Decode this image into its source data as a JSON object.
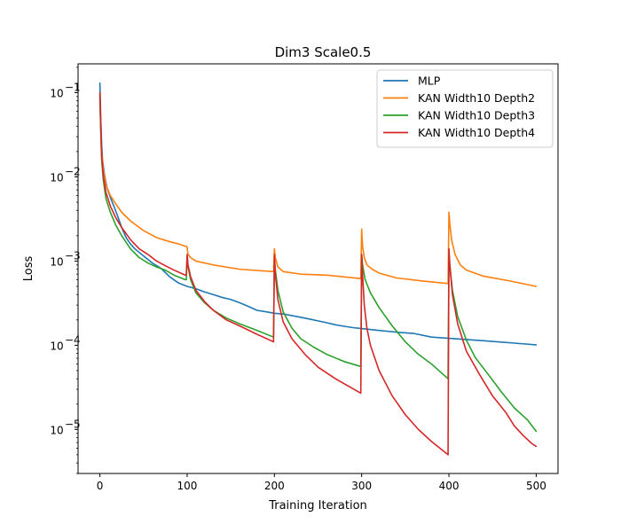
{
  "chart_data": {
    "type": "line",
    "title": "Dim3 Scale0.5",
    "xlabel": "Training Iteration",
    "ylabel": "Loss",
    "yscale": "log",
    "xlim": [
      -25,
      525
    ],
    "ylim": [
      3e-06,
      0.22
    ],
    "xticks": [
      0,
      100,
      200,
      300,
      400,
      500
    ],
    "xtick_labels": [
      "0",
      "100",
      "200",
      "300",
      "400",
      "500"
    ],
    "yticks": [
      1e-05,
      0.0001,
      0.001,
      0.01,
      0.1
    ],
    "ytick_labels": [
      [
        "10",
        "−5"
      ],
      [
        "10",
        "−4"
      ],
      [
        "10",
        "−3"
      ],
      [
        "10",
        "−2"
      ],
      [
        "10",
        "−1"
      ]
    ],
    "legend_position": "top-right",
    "series": [
      {
        "name": "MLP",
        "color": "#1f77b4",
        "points": [
          [
            0,
            0.13
          ],
          [
            1,
            0.05
          ],
          [
            2,
            0.025
          ],
          [
            3,
            0.016
          ],
          [
            5,
            0.011
          ],
          [
            8,
            0.0075
          ],
          [
            12,
            0.0057
          ],
          [
            16,
            0.0045
          ],
          [
            20,
            0.0035
          ],
          [
            25,
            0.0025
          ],
          [
            30,
            0.0019
          ],
          [
            35,
            0.0016
          ],
          [
            40,
            0.0014
          ],
          [
            50,
            0.00115
          ],
          [
            60,
            0.00095
          ],
          [
            70,
            0.00082
          ],
          [
            80,
            0.00065
          ],
          [
            90,
            0.00055
          ],
          [
            100,
            0.0005
          ],
          [
            110,
            0.00047
          ],
          [
            120,
            0.00043
          ],
          [
            130,
            0.0004
          ],
          [
            140,
            0.00037
          ],
          [
            150,
            0.00035
          ],
          [
            160,
            0.00032
          ],
          [
            170,
            0.00029
          ],
          [
            180,
            0.00026
          ],
          [
            190,
            0.00025
          ],
          [
            200,
            0.00024
          ],
          [
            210,
            0.000235
          ],
          [
            220,
            0.000225
          ],
          [
            230,
            0.000215
          ],
          [
            240,
            0.000205
          ],
          [
            250,
            0.000195
          ],
          [
            260,
            0.000185
          ],
          [
            270,
            0.000175
          ],
          [
            280,
            0.000168
          ],
          [
            290,
            0.000162
          ],
          [
            300,
            0.000158
          ],
          [
            320,
            0.00015
          ],
          [
            340,
            0.000143
          ],
          [
            360,
            0.000138
          ],
          [
            380,
            0.000125
          ],
          [
            400,
            0.000121
          ],
          [
            420,
            0.000117
          ],
          [
            440,
            0.000113
          ],
          [
            460,
            0.000109
          ],
          [
            480,
            0.000105
          ],
          [
            500,
            0.000101
          ]
        ]
      },
      {
        "name": "KAN Width10 Depth2",
        "color": "#ff7f0e",
        "points": [
          [
            0,
            0.08
          ],
          [
            1,
            0.04
          ],
          [
            2,
            0.02
          ],
          [
            4,
            0.012
          ],
          [
            7,
            0.008
          ],
          [
            12,
            0.006
          ],
          [
            18,
            0.0048
          ],
          [
            25,
            0.0038
          ],
          [
            35,
            0.003
          ],
          [
            50,
            0.0023
          ],
          [
            65,
            0.0019
          ],
          [
            80,
            0.0017
          ],
          [
            90,
            0.0016
          ],
          [
            98,
            0.0015
          ],
          [
            99,
            0.0015
          ],
          [
            100,
            0.00145
          ],
          [
            101,
            0.0012
          ],
          [
            104,
            0.0011
          ],
          [
            110,
            0.001
          ],
          [
            130,
            0.0009
          ],
          [
            160,
            0.0008
          ],
          [
            199,
            0.00075
          ],
          [
            200,
            0.0014
          ],
          [
            201,
            0.0011
          ],
          [
            204,
            0.00085
          ],
          [
            210,
            0.00075
          ],
          [
            230,
            0.0007
          ],
          [
            260,
            0.00068
          ],
          [
            299,
            0.00062
          ],
          [
            300,
            0.0024
          ],
          [
            301,
            0.0015
          ],
          [
            303,
            0.0011
          ],
          [
            306,
            0.0009
          ],
          [
            312,
            0.0008
          ],
          [
            320,
            0.00072
          ],
          [
            340,
            0.00063
          ],
          [
            370,
            0.00058
          ],
          [
            399,
            0.00054
          ],
          [
            400,
            0.0038
          ],
          [
            401,
            0.0028
          ],
          [
            403,
            0.0018
          ],
          [
            407,
            0.0012
          ],
          [
            413,
            0.0009
          ],
          [
            420,
            0.00078
          ],
          [
            440,
            0.00066
          ],
          [
            470,
            0.00058
          ],
          [
            500,
            0.0005
          ]
        ]
      },
      {
        "name": "KAN Width10 Depth3",
        "color": "#2ca02c",
        "points": [
          [
            0,
            0.09
          ],
          [
            1,
            0.035
          ],
          [
            2,
            0.016
          ],
          [
            4,
            0.009
          ],
          [
            7,
            0.0055
          ],
          [
            12,
            0.0038
          ],
          [
            18,
            0.0027
          ],
          [
            25,
            0.002
          ],
          [
            35,
            0.0014
          ],
          [
            45,
            0.0011
          ],
          [
            55,
            0.00095
          ],
          [
            65,
            0.00085
          ],
          [
            75,
            0.00078
          ],
          [
            85,
            0.00068
          ],
          [
            98,
            0.0006
          ],
          [
            99,
            0.0006
          ],
          [
            100,
            0.0011
          ],
          [
            101,
            0.00085
          ],
          [
            104,
            0.0006
          ],
          [
            110,
            0.00042
          ],
          [
            120,
            0.00032
          ],
          [
            130,
            0.00026
          ],
          [
            145,
            0.00021
          ],
          [
            160,
            0.00018
          ],
          [
            180,
            0.00015
          ],
          [
            199,
            0.000125
          ],
          [
            200,
            0.0011
          ],
          [
            201,
            0.0008
          ],
          [
            204,
            0.00045
          ],
          [
            210,
            0.00025
          ],
          [
            220,
            0.00016
          ],
          [
            230,
            0.00012
          ],
          [
            245,
            9.5e-05
          ],
          [
            260,
            7.8e-05
          ],
          [
            280,
            6.4e-05
          ],
          [
            299,
            5.6e-05
          ],
          [
            300,
            0.0012
          ],
          [
            301,
            0.0009
          ],
          [
            304,
            0.0006
          ],
          [
            310,
            0.00042
          ],
          [
            320,
            0.00028
          ],
          [
            335,
            0.00017
          ],
          [
            350,
            0.00011
          ],
          [
            365,
            7.8e-05
          ],
          [
            380,
            6e-05
          ],
          [
            399,
            4e-05
          ],
          [
            400,
            0.0013
          ],
          [
            401,
            0.0009
          ],
          [
            404,
            0.00045
          ],
          [
            410,
            0.00022
          ],
          [
            420,
            0.000115
          ],
          [
            430,
            7.2e-05
          ],
          [
            445,
            4.5e-05
          ],
          [
            460,
            2.8e-05
          ],
          [
            475,
            1.8e-05
          ],
          [
            490,
            1.3e-05
          ],
          [
            500,
            9.5e-06
          ]
        ]
      },
      {
        "name": "KAN Width10 Depth4",
        "color": "#d62728",
        "points": [
          [
            0,
            0.1
          ],
          [
            1,
            0.04
          ],
          [
            2,
            0.018
          ],
          [
            4,
            0.01
          ],
          [
            7,
            0.0065
          ],
          [
            12,
            0.0045
          ],
          [
            18,
            0.0033
          ],
          [
            25,
            0.0025
          ],
          [
            35,
            0.0018
          ],
          [
            45,
            0.0014
          ],
          [
            55,
            0.0012
          ],
          [
            65,
            0.001
          ],
          [
            75,
            0.00088
          ],
          [
            85,
            0.00078
          ],
          [
            98,
            0.00068
          ],
          [
            99,
            0.00068
          ],
          [
            100,
            0.0012
          ],
          [
            101,
            0.0009
          ],
          [
            104,
            0.00065
          ],
          [
            110,
            0.00045
          ],
          [
            120,
            0.00033
          ],
          [
            130,
            0.00026
          ],
          [
            145,
            0.0002
          ],
          [
            160,
            0.00017
          ],
          [
            180,
            0.000135
          ],
          [
            199,
            0.00011
          ],
          [
            200,
            0.0012
          ],
          [
            201,
            0.0007
          ],
          [
            204,
            0.00035
          ],
          [
            210,
            0.00019
          ],
          [
            220,
            0.00012
          ],
          [
            235,
            7.8e-05
          ],
          [
            250,
            5.5e-05
          ],
          [
            270,
            4e-05
          ],
          [
            299,
            2.7e-05
          ],
          [
            300,
            0.0012
          ],
          [
            301,
            0.0007
          ],
          [
            303,
            0.0003
          ],
          [
            306,
            0.00016
          ],
          [
            310,
            0.0001
          ],
          [
            320,
            5e-05
          ],
          [
            335,
            2.5e-05
          ],
          [
            350,
            1.5e-05
          ],
          [
            365,
            1e-05
          ],
          [
            380,
            7.2e-06
          ],
          [
            399,
            5e-06
          ],
          [
            400,
            0.0014
          ],
          [
            401,
            0.0009
          ],
          [
            404,
            0.0004
          ],
          [
            410,
            0.00018
          ],
          [
            420,
            8.5e-05
          ],
          [
            435,
            4.5e-05
          ],
          [
            450,
            2.5e-05
          ],
          [
            465,
            1.6e-05
          ],
          [
            475,
            1.1e-05
          ],
          [
            485,
            8.5e-06
          ],
          [
            495,
            6.8e-06
          ],
          [
            500,
            6.3e-06
          ]
        ]
      }
    ]
  }
}
